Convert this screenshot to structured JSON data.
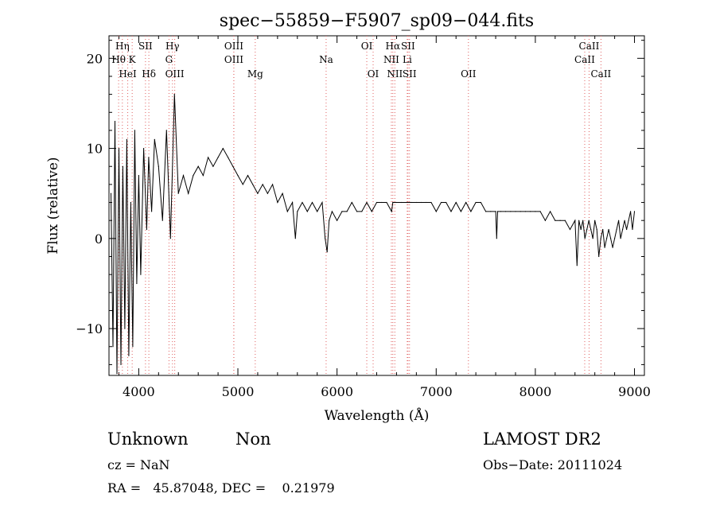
{
  "chart_data": {
    "type": "line",
    "title": "spec−55859−F5907_sp09−044.fits",
    "xlabel": "Wavelength (Å)",
    "ylabel": "Flux (relative)",
    "xlim": [
      3700,
      9100
    ],
    "ylim": [
      -15.2,
      22.5
    ],
    "x_ticks": [
      4000,
      5000,
      6000,
      7000,
      8000,
      9000
    ],
    "x_tick_labels": [
      "4000",
      "5000",
      "6000",
      "7000",
      "8000",
      "9000"
    ],
    "y_ticks": [
      -10,
      0,
      10,
      20
    ],
    "y_tick_labels": [
      "−10",
      "0",
      "10",
      "20"
    ],
    "grid": false,
    "line_color": "#000000",
    "marker_color": "#e06060",
    "series": [
      {
        "x": [
          3720,
          3740,
          3760,
          3780,
          3800,
          3820,
          3840,
          3860,
          3880,
          3900,
          3920,
          3940,
          3960,
          3980,
          4000,
          4020,
          4050,
          4080,
          4100,
          4130,
          4160,
          4200,
          4240,
          4280,
          4320,
          4360,
          4400,
          4450,
          4500,
          4550,
          4600,
          4650,
          4700,
          4750,
          4800,
          4850,
          4900,
          4950,
          5000,
          5050,
          5100,
          5150,
          5200,
          5250,
          5300,
          5350,
          5400,
          5450,
          5500,
          5550,
          5580,
          5600,
          5650,
          5700,
          5750,
          5800,
          5850,
          5880,
          5900,
          5920,
          5950,
          6000,
          6050,
          6100,
          6150,
          6200,
          6250,
          6300,
          6350,
          6400,
          6450,
          6500,
          6550,
          6563,
          6600,
          6650,
          6700,
          6750,
          6800,
          6850,
          6900,
          6950,
          7000,
          7050,
          7100,
          7150,
          7200,
          7250,
          7300,
          7350,
          7400,
          7450,
          7500,
          7550,
          7600,
          7610,
          7620,
          7650,
          7700,
          7750,
          7800,
          7850,
          7900,
          7950,
          8000,
          8050,
          8100,
          8150,
          8200,
          8250,
          8300,
          8350,
          8400,
          8420,
          8440,
          8460,
          8480,
          8500,
          8520,
          8540,
          8560,
          8580,
          8600,
          8620,
          8640,
          8660,
          8680,
          8700,
          8720,
          8740,
          8760,
          8780,
          8800,
          8820,
          8840,
          8860,
          8880,
          8900,
          8920,
          8940,
          8960,
          8980,
          9000
        ],
        "y": [
          5,
          -12,
          13,
          -15,
          10,
          -14,
          8,
          -10,
          11,
          -13,
          4,
          -12,
          12,
          -5,
          7,
          -4,
          10,
          1,
          9,
          3,
          11,
          8,
          2,
          12,
          0,
          16,
          5,
          7,
          5,
          7,
          8,
          7,
          9,
          8,
          9,
          10,
          9,
          8,
          7,
          6,
          7,
          6,
          5,
          6,
          5,
          6,
          4,
          5,
          3,
          4,
          0,
          3,
          4,
          3,
          4,
          3,
          4,
          0,
          -1.5,
          2,
          3,
          2,
          3,
          3,
          4,
          3,
          3,
          4,
          3,
          4,
          4,
          4,
          3,
          4,
          4,
          4,
          4,
          4,
          4,
          4,
          4,
          4,
          3,
          4,
          4,
          3,
          4,
          3,
          4,
          3,
          4,
          4,
          3,
          3,
          3,
          0,
          3,
          3,
          3,
          3,
          3,
          3,
          3,
          3,
          3,
          3,
          2,
          3,
          2,
          2,
          2,
          1,
          2,
          -3,
          2,
          1,
          2,
          0,
          1,
          2,
          1,
          0,
          2,
          1,
          -2,
          0,
          1,
          -1,
          0,
          1,
          0,
          -1,
          0,
          1,
          2,
          0,
          1,
          2,
          1,
          2,
          3,
          1,
          3
        ]
      }
    ],
    "lines": [
      {
        "name": "Hη",
        "wavelength": 3835,
        "row": 0
      },
      {
        "name": "SII",
        "wavelength": 4068,
        "row": 0
      },
      {
        "name": "Hγ",
        "wavelength": 4340,
        "row": 0
      },
      {
        "name": "OIII",
        "wavelength": 4959,
        "row": 0
      },
      {
        "name": "OI",
        "wavelength": 6300,
        "row": 0
      },
      {
        "name": "Hα",
        "wavelength": 6563,
        "row": 0
      },
      {
        "name": "SII",
        "wavelength": 6716,
        "row": 0
      },
      {
        "name": "CaII",
        "wavelength": 8542,
        "row": 0
      },
      {
        "name": "Hθ",
        "wavelength": 3797,
        "row": 1
      },
      {
        "name": "K",
        "wavelength": 3934,
        "row": 1
      },
      {
        "name": "G",
        "wavelength": 4305,
        "row": 1
      },
      {
        "name": "OIII",
        "wavelength": 4959,
        "row": 1
      },
      {
        "name": "Na",
        "wavelength": 5890,
        "row": 1
      },
      {
        "name": "NII",
        "wavelength": 6548,
        "row": 1
      },
      {
        "name": "Li",
        "wavelength": 6708,
        "row": 1
      },
      {
        "name": "CaII",
        "wavelength": 8498,
        "row": 1
      },
      {
        "name": "HeI",
        "wavelength": 3889,
        "row": 2
      },
      {
        "name": "Hδ",
        "wavelength": 4102,
        "row": 2
      },
      {
        "name": "OIII",
        "wavelength": 4363,
        "row": 2
      },
      {
        "name": "Mg",
        "wavelength": 5175,
        "row": 2
      },
      {
        "name": "OI",
        "wavelength": 6364,
        "row": 2
      },
      {
        "name": "NII",
        "wavelength": 6583,
        "row": 2
      },
      {
        "name": "SII",
        "wavelength": 6731,
        "row": 2
      },
      {
        "name": "OII",
        "wavelength": 7325,
        "row": 2
      },
      {
        "name": "CaII",
        "wavelength": 8662,
        "row": 2
      }
    ]
  },
  "info": {
    "class": "Unknown",
    "subclass": "Non",
    "survey": "LAMOST DR2",
    "cz": "cz = NaN",
    "obs_date": "Obs−Date: 20111024",
    "coords": "RA =   45.87048, DEC =    0.21979"
  }
}
